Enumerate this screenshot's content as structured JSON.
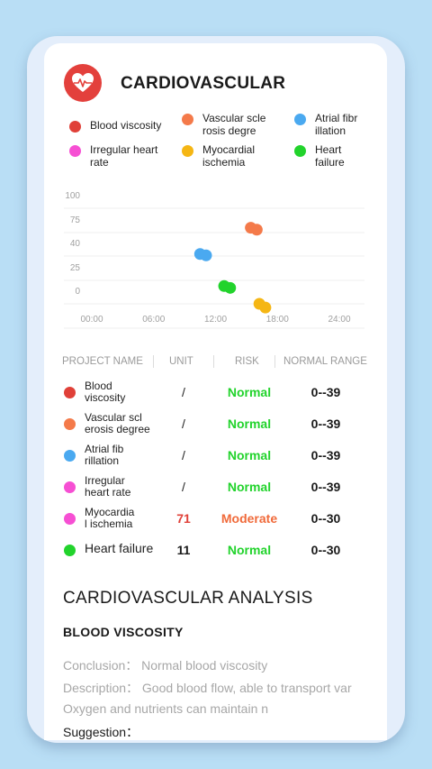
{
  "header": {
    "title": "CARDIOVASCULAR",
    "icon": "heart-pulse-icon",
    "icon_color": "#e3403c"
  },
  "legend": [
    {
      "label": "Blood viscosity",
      "color": "#e04038"
    },
    {
      "label": "Vascular scle\nrosis degre",
      "color": "#f47a4a"
    },
    {
      "label": "Atrial fibr\nillation",
      "color": "#4aa9f0"
    },
    {
      "label": "Irregular heart\nrate",
      "color": "#f64fd3"
    },
    {
      "label": "Myocardial\nischemia",
      "color": "#f5b614"
    },
    {
      "label": "Heart\nfailure",
      "color": "#22d32c"
    }
  ],
  "chart_data": {
    "type": "scatter",
    "y_ticks": [
      "100",
      "75",
      "40",
      "25",
      "0"
    ],
    "x_ticks": [
      "00:00",
      "06:00",
      "12:00",
      "18:00",
      "24:00"
    ],
    "grid": true,
    "series": [
      {
        "name": "Vascular scle rosis degre",
        "color": "#f47a4a",
        "points": [
          {
            "x": "15:25",
            "y": 80
          },
          {
            "x": "16:00",
            "y": 78
          }
        ]
      },
      {
        "name": "Atrial fibr illation",
        "color": "#4aa9f0",
        "points": [
          {
            "x": "10:30",
            "y": 43
          },
          {
            "x": "11:05",
            "y": 41
          }
        ]
      },
      {
        "name": "Heart failure",
        "color": "#22d32c",
        "points": [
          {
            "x": "12:50",
            "y": 19
          },
          {
            "x": "13:25",
            "y": 17
          }
        ]
      },
      {
        "name": "Myocardial ischemia",
        "color": "#f5b614",
        "points": [
          {
            "x": "16:15",
            "y": 0
          },
          {
            "x": "16:50",
            "y": -4
          }
        ]
      }
    ]
  },
  "table": {
    "headers": [
      "PROJECT NAME",
      "UNIT",
      "RISK",
      "NORMAL RANGE"
    ],
    "rows": [
      {
        "name": "Blood\nviscosity",
        "color": "#e04038",
        "unit": "/",
        "risk": "Normal",
        "risk_color": "#22d32c",
        "unit_color": "#222222",
        "range": "0--39"
      },
      {
        "name": "Vascular scl\nerosis degree",
        "color": "#f47a4a",
        "unit": "/",
        "risk": "Normal",
        "risk_color": "#22d32c",
        "unit_color": "#222222",
        "range": "0--39"
      },
      {
        "name": "Atrial fib\n rillation",
        "color": "#4aa9f0",
        "unit": "/",
        "risk": "Normal",
        "risk_color": "#22d32c",
        "unit_color": "#222222",
        "range": "0--39"
      },
      {
        "name": "Irregular\nheart rate",
        "color": "#f64fd3",
        "unit": "/",
        "risk": "Normal",
        "risk_color": "#22d32c",
        "unit_color": "#222222",
        "range": "0--39"
      },
      {
        "name": "Myocardia\nl ischemia",
        "color": "#f64fd3",
        "unit": "71",
        "risk": "Moderate",
        "risk_color": "#f06a3a",
        "unit_color": "#e04038",
        "range": "0--30"
      },
      {
        "name": "Heart failure",
        "color": "#22d32c",
        "unit": "11",
        "risk": "Normal",
        "risk_color": "#22d32c",
        "unit_color": "#1a1a1a",
        "range": "0--30"
      }
    ]
  },
  "analysis": {
    "title": "CARDIOVASCULAR ANALYSIS",
    "section_title": "BLOOD VISCOSITY",
    "conclusion": "Conclusion： Normal blood viscosity",
    "description": "Description： Good blood flow, able to transport var",
    "description_cont": "Oxygen and nutrients can maintain n",
    "suggestion": "Suggestion："
  }
}
